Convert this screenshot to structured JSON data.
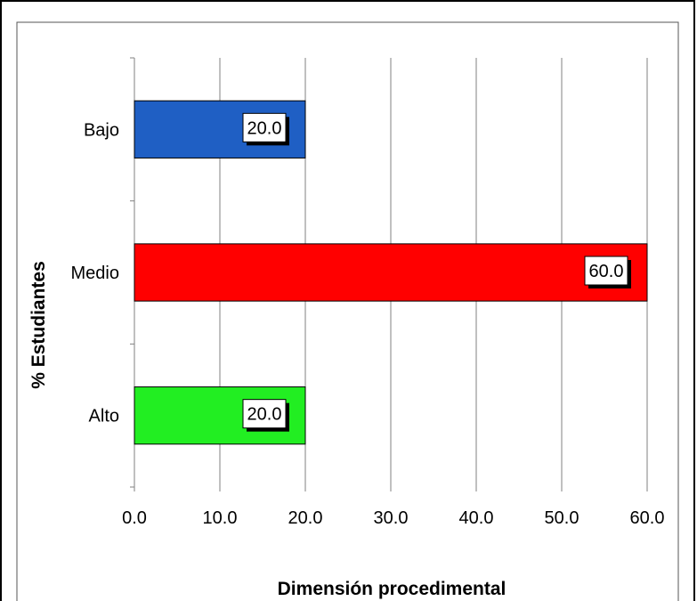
{
  "chart_data": {
    "type": "bar",
    "orientation": "horizontal",
    "categories": [
      "Bajo",
      "Medio",
      "Alto"
    ],
    "values": [
      20.0,
      60.0,
      20.0
    ],
    "value_labels": [
      "20.0",
      "60.0",
      "20.0"
    ],
    "colors": [
      "#1F5FC4",
      "#FF0000",
      "#22EE22"
    ],
    "xlabel": "Dimensión procedimental",
    "ylabel": "% Estudiantes",
    "xlim": [
      0,
      60
    ],
    "x_ticks": [
      "0.0",
      "10.0",
      "20.0",
      "30.0",
      "40.0",
      "50.0",
      "60.0"
    ],
    "grid": "vertical",
    "legend": "none"
  }
}
